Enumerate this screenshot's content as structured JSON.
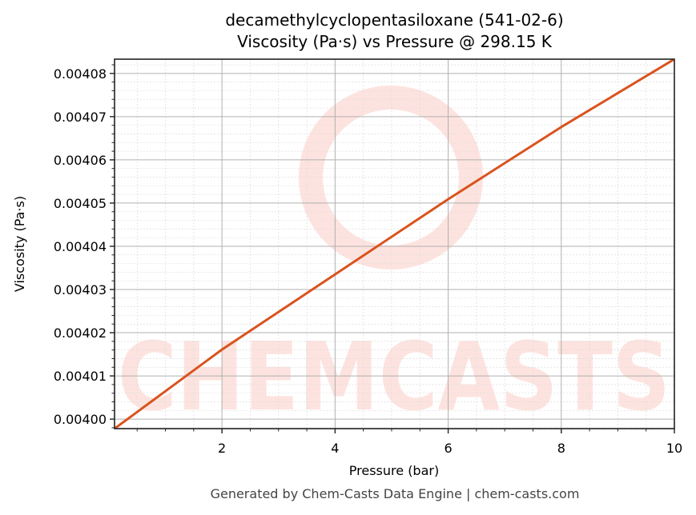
{
  "title": {
    "line1": "decamethylcyclopentasiloxane (541-02-6)",
    "line2": "Viscosity (Pa·s) vs Pressure @ 298.15 K"
  },
  "footer": "Generated by Chem-Casts Data Engine | chem-casts.com",
  "watermark": {
    "text": "CHEMCASTS",
    "color": "#fde3df"
  },
  "colors": {
    "line": "#d9531e",
    "major_grid": "#b0b0b0",
    "minor_grid": "#dddddd",
    "axes": "#222222"
  },
  "chart_data": {
    "type": "line",
    "title": "decamethylcyclopentasiloxane (541-02-6)\nViscosity (Pa·s) vs Pressure @ 298.15 K",
    "xlabel": "Pressure (bar)",
    "ylabel": "Viscosity (Pa·s)",
    "xlim": [
      0.1,
      10
    ],
    "ylim": [
      0.0039978,
      0.0040833
    ],
    "xticks": [
      2,
      4,
      6,
      8,
      10
    ],
    "xtick_labels": [
      "2",
      "4",
      "6",
      "8",
      "10"
    ],
    "yticks": [
      0.004,
      0.00401,
      0.00402,
      0.00403,
      0.00404,
      0.00405,
      0.00406,
      0.00407,
      0.00408
    ],
    "ytick_labels": [
      "0.00400",
      "0.00401",
      "0.00402",
      "0.00403",
      "0.00404",
      "0.00405",
      "0.00406",
      "0.00407",
      "0.00408"
    ],
    "grid": true,
    "minor_grid": true,
    "legend": null,
    "series": [
      {
        "name": "Viscosity",
        "x": [
          0.1,
          2,
          4,
          6,
          8,
          10
        ],
        "y": [
          0.0039978,
          0.0040161,
          0.0040335,
          0.0040509,
          0.0040676,
          0.0040833
        ]
      }
    ]
  }
}
